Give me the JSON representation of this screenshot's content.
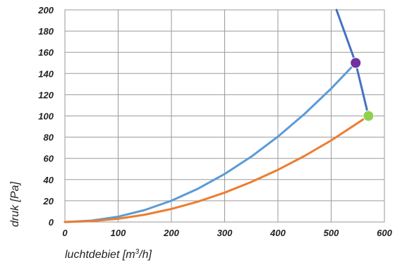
{
  "chart_data": {
    "type": "line",
    "xlabel_main": "luchtdebiet [m",
    "xlabel_sup": "3",
    "xlabel_tail": "/h]",
    "ylabel": "druk [Pa]",
    "xlim": [
      0,
      600
    ],
    "ylim": [
      0,
      200
    ],
    "x_ticks": [
      "0",
      "100",
      "200",
      "300",
      "400",
      "500",
      "600"
    ],
    "y_ticks": [
      "0",
      "20",
      "40",
      "60",
      "80",
      "100",
      "120",
      "140",
      "160",
      "180",
      "200"
    ],
    "grid": true,
    "series": [
      {
        "color": "#5b9bd5",
        "x": [
          0,
          50,
          100,
          150,
          200,
          250,
          300,
          350,
          400,
          450,
          500,
          546
        ],
        "y": [
          0,
          1.3,
          5.0,
          11.3,
          20.1,
          31.4,
          45.3,
          61.6,
          80.5,
          101.9,
          125.8,
          150
        ]
      },
      {
        "color": "#ed7d31",
        "x": [
          0,
          50,
          100,
          150,
          200,
          250,
          300,
          350,
          400,
          450,
          500,
          570
        ],
        "y": [
          0,
          0.8,
          3.1,
          6.9,
          12.3,
          19.2,
          27.7,
          37.7,
          49.2,
          62.3,
          76.9,
          100
        ]
      },
      {
        "color": "#4472c4",
        "x": [
          510,
          546,
          570
        ],
        "y": [
          200,
          150,
          100
        ]
      }
    ],
    "markers": [
      {
        "x": 546,
        "y": 150,
        "color": "#7030a0"
      },
      {
        "x": 570,
        "y": 100,
        "color": "#92d050"
      }
    ]
  }
}
